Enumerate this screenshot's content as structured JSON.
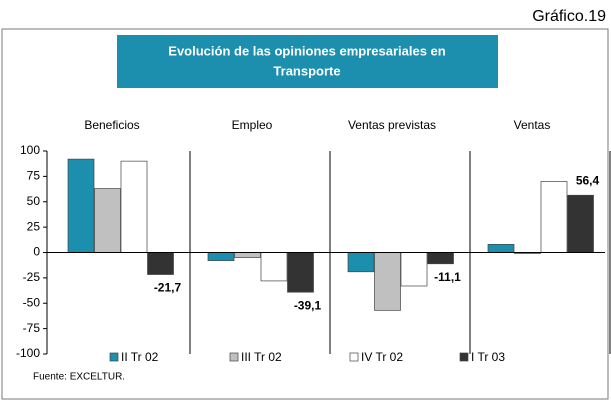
{
  "chart_data": {
    "type": "bar",
    "figure_label": "Gráfico.19",
    "title": [
      "Evolución de las opiniones empresariales en",
      "Transporte"
    ],
    "categories": [
      "Beneficios",
      "Empleo",
      "Ventas previstas",
      "Ventas"
    ],
    "series": [
      {
        "name": "II Tr 02",
        "color": "#1c8fae",
        "values": [
          92,
          -8,
          -19,
          8
        ]
      },
      {
        "name": "III Tr 02",
        "color": "#c0c0c0",
        "values": [
          63,
          -5,
          -57,
          -1
        ]
      },
      {
        "name": "IV Tr 02",
        "color": "#ffffff",
        "values": [
          90,
          -28,
          -33,
          70
        ]
      },
      {
        "name": "I Tr 03",
        "color": "#333333",
        "values": [
          -21.7,
          -39.1,
          -11.1,
          56.4
        ],
        "value_labels": [
          "-21,7",
          "-39,1",
          "-11,1",
          "56,4"
        ]
      }
    ],
    "ylim": [
      -100,
      100
    ],
    "yticks": [
      -100,
      -75,
      -50,
      -25,
      0,
      25,
      50,
      75,
      100
    ],
    "source": "Fuente: EXCELTUR."
  }
}
